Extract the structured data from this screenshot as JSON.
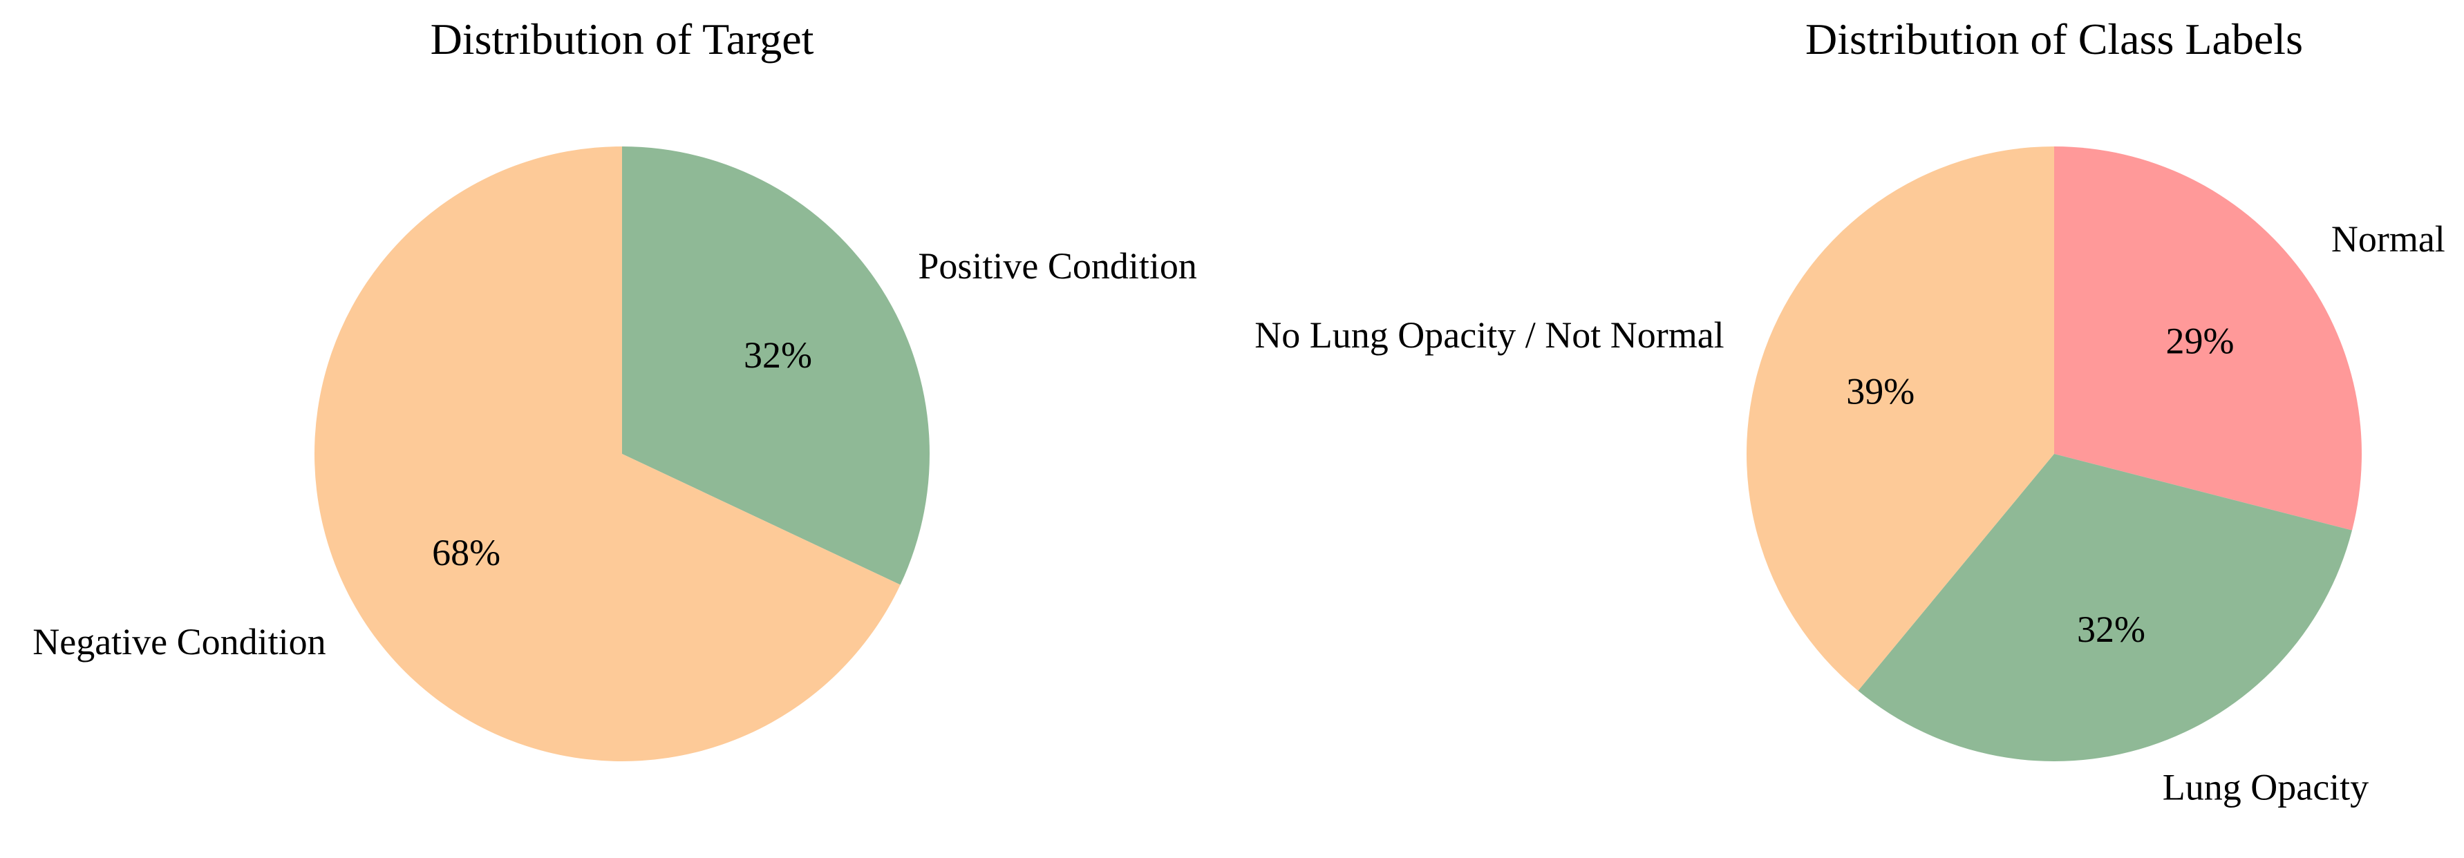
{
  "chart_data": [
    {
      "type": "pie",
      "title": "Distribution of Target",
      "labels": [
        "Positive Condition",
        "Negative Condition"
      ],
      "values": [
        32,
        68
      ],
      "pct_labels": [
        "32%",
        "68%"
      ],
      "colors": [
        "#8fb996",
        "#fdca98"
      ],
      "start_angle": 90,
      "direction": "clockwise"
    },
    {
      "type": "pie",
      "title": "Distribution of Class Labels",
      "labels": [
        "Normal",
        "Lung Opacity",
        "No Lung Opacity / Not Normal"
      ],
      "values": [
        29,
        32,
        39
      ],
      "pct_labels": [
        "29%",
        "32%",
        "39%"
      ],
      "colors": [
        "#ff9999",
        "#8fb996",
        "#fdca98"
      ],
      "start_angle": 90,
      "direction": "clockwise"
    }
  ]
}
